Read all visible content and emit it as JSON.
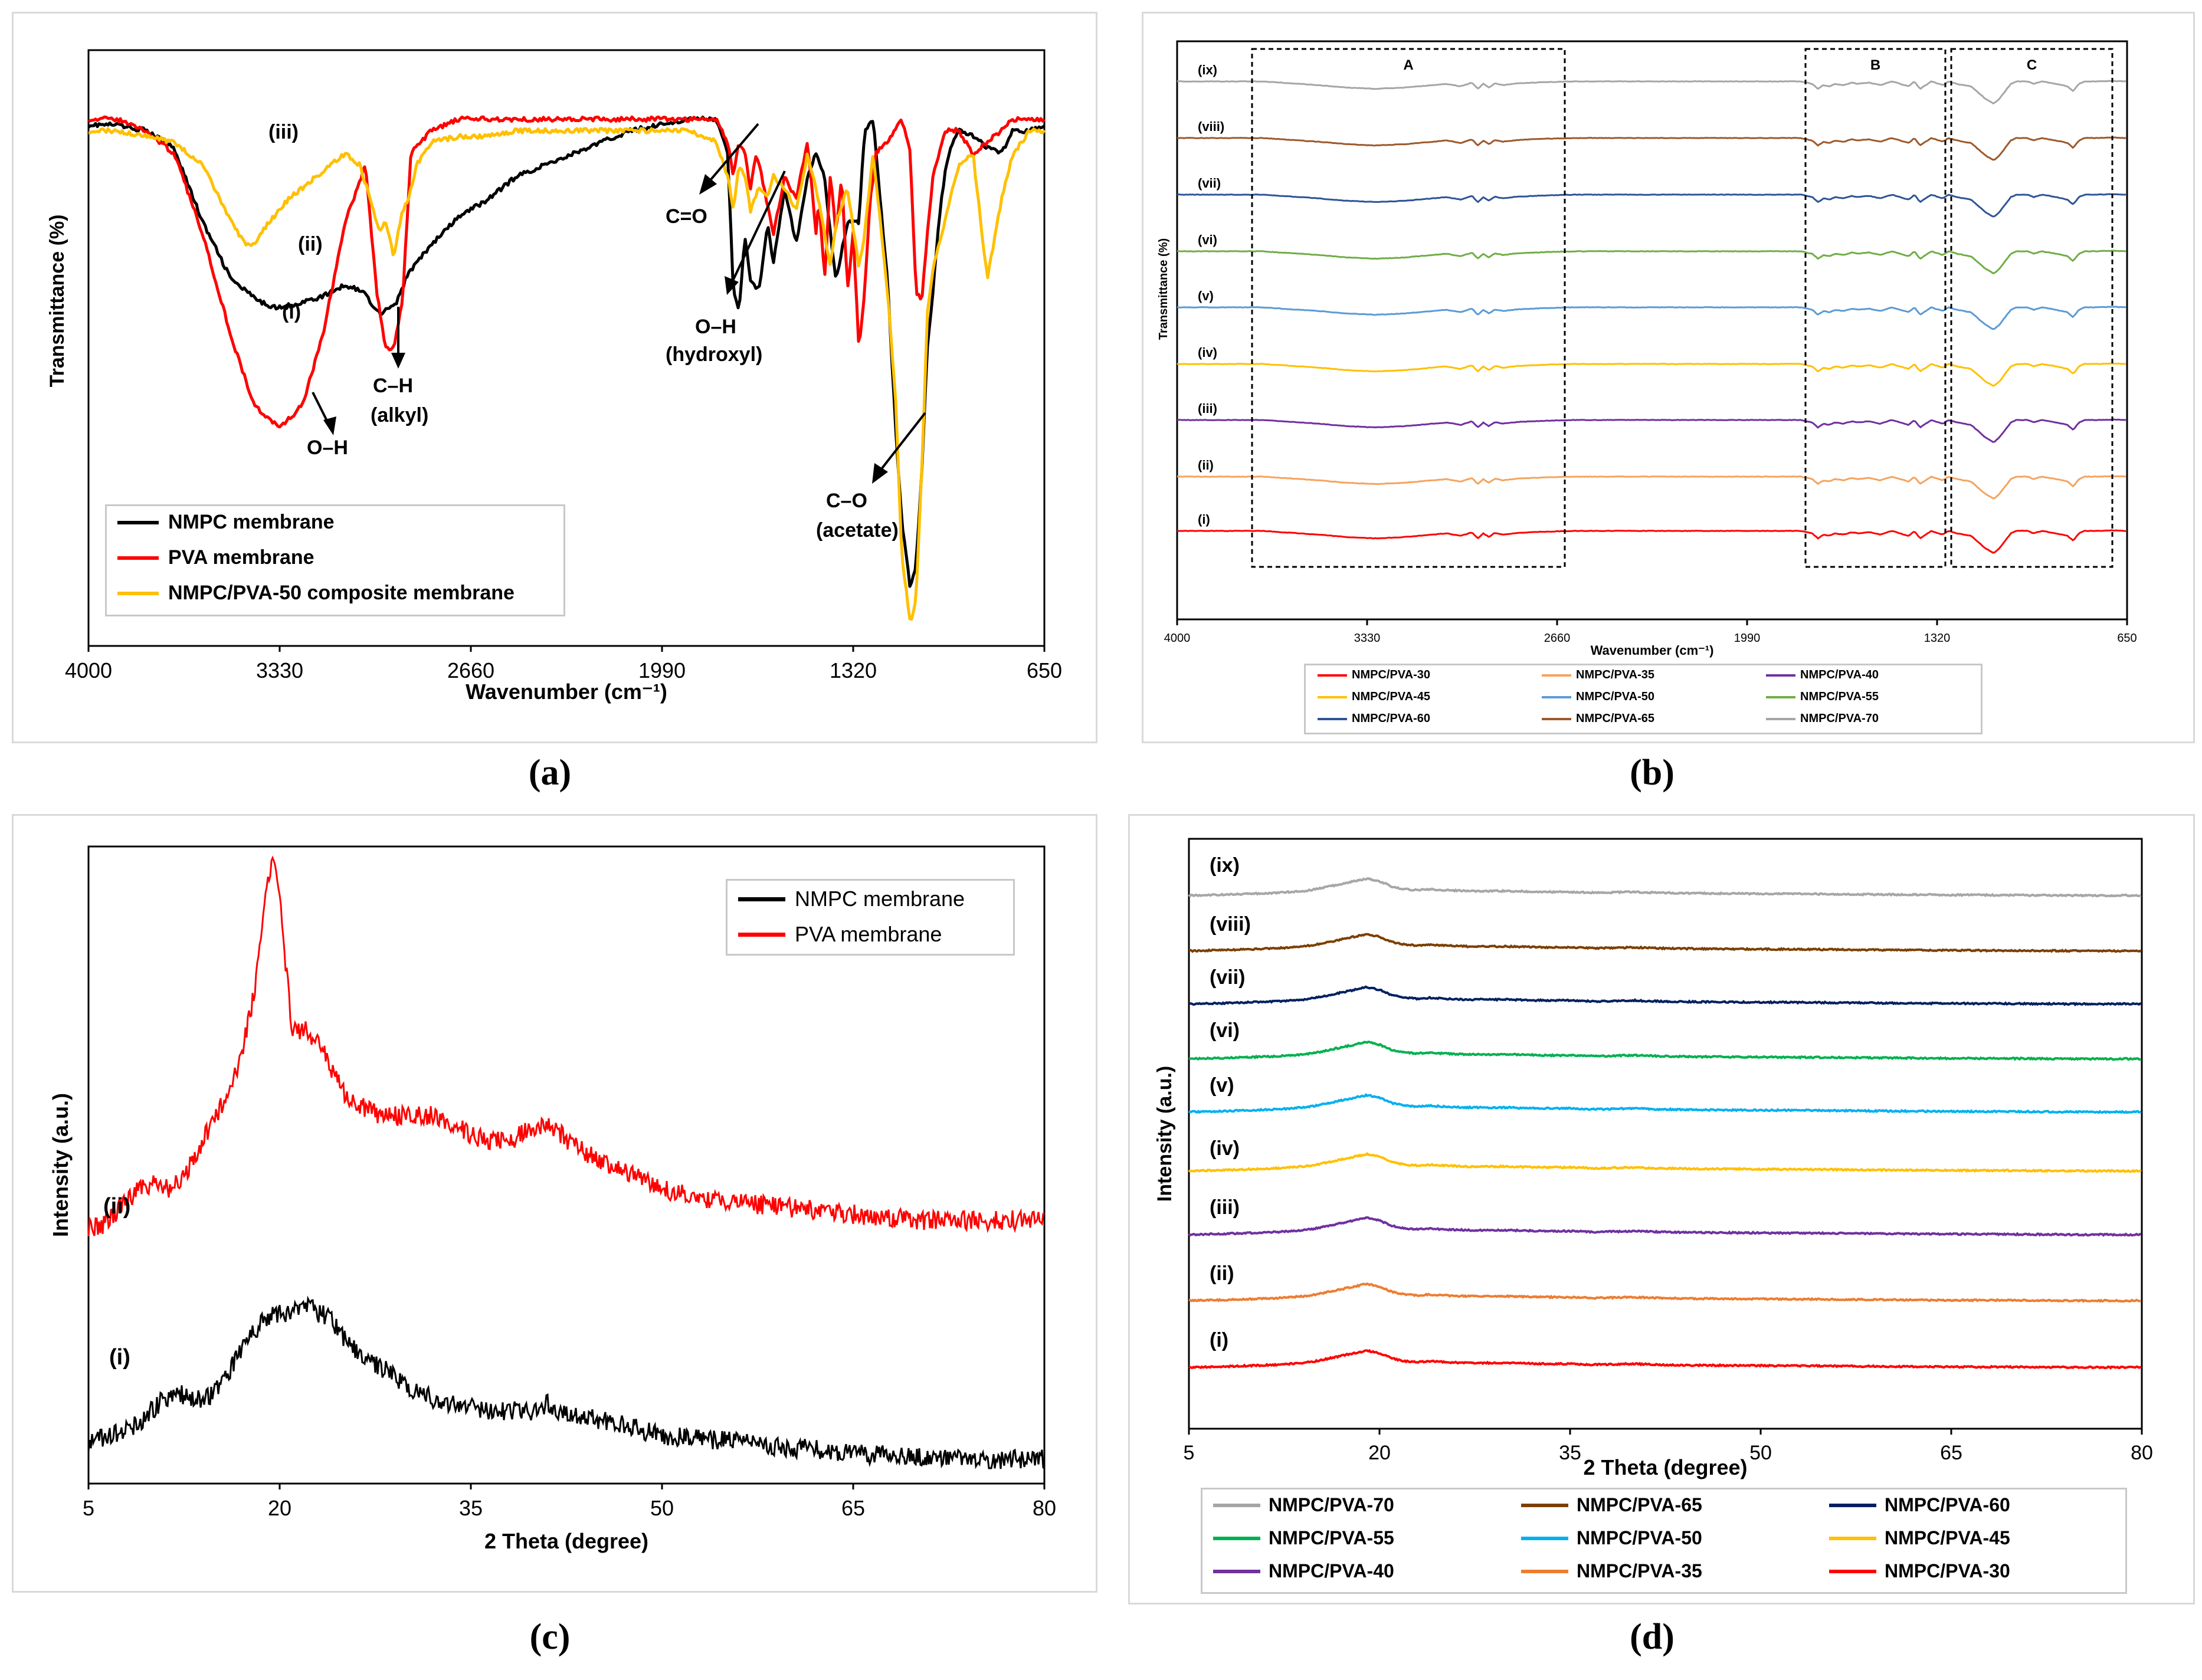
{
  "captions": {
    "a": "(a)",
    "b": "(b)",
    "c": "(c)",
    "d": "(d)"
  },
  "chart_data": [
    {
      "id": "a",
      "type": "line",
      "title": "",
      "xlabel": "Wavenumber (cm⁻¹)",
      "ylabel": "Transmittance (%)",
      "xlim": [
        4000,
        650
      ],
      "x_reversed": true,
      "xticks": [
        "4000",
        "3330",
        "2660",
        "1990",
        "1320",
        "650"
      ],
      "ylim": [
        0,
        100
      ],
      "legend_position": "bottom-left",
      "series": [
        {
          "name": "NMPC membrane",
          "label": "(i)",
          "color": "#000000",
          "x": [
            4000,
            3900,
            3800,
            3700,
            3600,
            3500,
            3400,
            3330,
            3250,
            3180,
            3100,
            3040,
            2980,
            2920,
            2880,
            2800,
            2700,
            2600,
            2500,
            2400,
            2300,
            2200,
            2100,
            2000,
            1900,
            1800,
            1760,
            1740,
            1720,
            1700,
            1680,
            1650,
            1620,
            1600,
            1560,
            1520,
            1480,
            1450,
            1420,
            1400,
            1380,
            1340,
            1300,
            1280,
            1250,
            1200,
            1170,
            1150,
            1120,
            1100,
            1080,
            1060,
            1040,
            1020,
            1000,
            980,
            950,
            900,
            850,
            800,
            760,
            700,
            650
          ],
          "y": [
            89,
            89,
            88,
            85,
            72,
            62,
            58,
            57,
            58,
            59,
            61,
            60,
            56,
            58,
            63,
            68,
            73,
            76,
            80,
            82,
            84,
            86,
            88,
            89,
            90,
            90,
            84,
            60,
            56,
            70,
            62,
            60,
            72,
            65,
            78,
            68,
            80,
            84,
            80,
            70,
            62,
            72,
            72,
            88,
            90,
            62,
            35,
            20,
            8,
            12,
            28,
            50,
            60,
            72,
            80,
            85,
            88,
            87,
            85,
            84,
            88,
            88,
            89
          ]
        },
        {
          "name": "PVA membrane",
          "label": "(ii)",
          "color": "#ff0000",
          "x": [
            4000,
            3900,
            3800,
            3700,
            3600,
            3500,
            3420,
            3330,
            3250,
            3180,
            3100,
            3030,
            2990,
            2960,
            2930,
            2900,
            2870,
            2800,
            2700,
            2600,
            2500,
            2400,
            2300,
            2200,
            2100,
            2000,
            1900,
            1800,
            1760,
            1740,
            1720,
            1700,
            1680,
            1660,
            1640,
            1600,
            1560,
            1520,
            1480,
            1450,
            1440,
            1420,
            1400,
            1380,
            1360,
            1340,
            1320,
            1300,
            1280,
            1260,
            1240,
            1200,
            1150,
            1120,
            1100,
            1080,
            1060,
            1040,
            1000,
            950,
            900,
            850,
            800,
            760,
            700,
            650
          ],
          "y": [
            90,
            90,
            88,
            84,
            70,
            52,
            40,
            36,
            40,
            52,
            72,
            82,
            60,
            50,
            50,
            58,
            84,
            88,
            90,
            90,
            90,
            90,
            90,
            90,
            90,
            90,
            90,
            90,
            86,
            80,
            86,
            84,
            78,
            84,
            80,
            70,
            80,
            76,
            86,
            70,
            76,
            62,
            80,
            70,
            80,
            60,
            70,
            50,
            60,
            76,
            84,
            86,
            90,
            84,
            60,
            58,
            70,
            80,
            88,
            88,
            84,
            86,
            88,
            90,
            90,
            90
          ]
        },
        {
          "name": "NMPC/PVA-50 composite membrane",
          "label": "(iii)",
          "color": "#ffc000",
          "x": [
            4000,
            3900,
            3800,
            3700,
            3600,
            3500,
            3450,
            3420,
            3400,
            3350,
            3300,
            3250,
            3200,
            3150,
            3100,
            3050,
            3000,
            2980,
            2960,
            2930,
            2900,
            2880,
            2850,
            2800,
            2700,
            2600,
            2500,
            2400,
            2300,
            2200,
            2100,
            2000,
            1900,
            1800,
            1760,
            1740,
            1720,
            1700,
            1680,
            1650,
            1620,
            1600,
            1560,
            1520,
            1480,
            1450,
            1420,
            1400,
            1380,
            1340,
            1300,
            1280,
            1250,
            1200,
            1170,
            1150,
            1120,
            1100,
            1080,
            1060,
            1040,
            1000,
            960,
            950,
            900,
            850,
            800,
            760,
            700,
            650
          ],
          "y": [
            88,
            88,
            87,
            86,
            82,
            72,
            68,
            68,
            70,
            73,
            76,
            78,
            80,
            82,
            84,
            82,
            74,
            70,
            72,
            66,
            74,
            76,
            82,
            86,
            87,
            87,
            88,
            88,
            88,
            88,
            88,
            88,
            88,
            86,
            80,
            74,
            82,
            80,
            74,
            78,
            76,
            80,
            78,
            74,
            84,
            78,
            70,
            64,
            72,
            78,
            64,
            70,
            84,
            60,
            40,
            14,
            2,
            6,
            28,
            56,
            64,
            72,
            80,
            82,
            84,
            62,
            76,
            84,
            88,
            88
          ]
        }
      ],
      "annotations": [
        "(i)",
        "(ii)",
        "(iii)",
        "O–H",
        "C–H",
        "(alkyl)",
        "C=O",
        "O–H",
        "(hydroxyl)",
        "C–O",
        "(acetate)"
      ]
    },
    {
      "id": "b",
      "type": "line",
      "title": "",
      "xlabel": "Wavenumber (cm⁻¹)",
      "ylabel": "Transmittance (%)",
      "xlim": [
        4000,
        650
      ],
      "x_reversed": true,
      "xticks": [
        "4000",
        "3330",
        "2660",
        "1990",
        "1320",
        "650"
      ],
      "stacked_offset": true,
      "regions": [
        "A",
        "B",
        "C"
      ],
      "legend_position": "bottom",
      "shape": {
        "x": [
          4000,
          3700,
          3500,
          3400,
          3300,
          3200,
          3100,
          3050,
          3000,
          2960,
          2940,
          2920,
          2900,
          2880,
          2850,
          2800,
          2700,
          2600,
          2500,
          2400,
          2300,
          2200,
          2100,
          2000,
          1900,
          1800,
          1760,
          1740,
          1720,
          1700,
          1680,
          1650,
          1620,
          1600,
          1560,
          1520,
          1480,
          1450,
          1420,
          1400,
          1380,
          1340,
          1300,
          1280,
          1250,
          1200,
          1170,
          1150,
          1120,
          1100,
          1080,
          1060,
          1040,
          1020,
          1000,
          980,
          950,
          900,
          860,
          840,
          820,
          800,
          760,
          700,
          650
        ],
        "y": [
          0,
          0,
          -1.5,
          -2.5,
          -3,
          -2.5,
          -1.5,
          -1,
          -2,
          -0.5,
          -3,
          -1,
          -2.5,
          -0.8,
          -1.5,
          -0.8,
          -0.3,
          0,
          0,
          0,
          0,
          0,
          0,
          0,
          0,
          0,
          -1,
          -3,
          -1.5,
          -2,
          -1,
          -1.5,
          -0.5,
          -1,
          -0.5,
          -1.5,
          0,
          -1,
          -2,
          0,
          -3,
          0,
          -1.5,
          0,
          -1,
          -2,
          -5,
          -7,
          -9,
          -7,
          -4,
          -1,
          0,
          0,
          0,
          -1,
          0,
          -1,
          -2,
          -4,
          -1,
          0,
          0,
          0.2,
          0
        ]
      },
      "series": [
        {
          "name": "NMPC/PVA-30",
          "label": "(i)",
          "color": "#ff0000"
        },
        {
          "name": "NMPC/PVA-35",
          "label": "(ii)",
          "color": "#f4a460"
        },
        {
          "name": "NMPC/PVA-40",
          "label": "(iii)",
          "color": "#7030a0"
        },
        {
          "name": "NMPC/PVA-45",
          "label": "(iv)",
          "color": "#ffc000"
        },
        {
          "name": "NMPC/PVA-50",
          "label": "(v)",
          "color": "#5b9bd5"
        },
        {
          "name": "NMPC/PVA-55",
          "label": "(vi)",
          "color": "#70ad47"
        },
        {
          "name": "NMPC/PVA-60",
          "label": "(vii)",
          "color": "#2e5597"
        },
        {
          "name": "NMPC/PVA-65",
          "label": "(viii)",
          "color": "#9c5a2c"
        },
        {
          "name": "NMPC/PVA-70",
          "label": "(ix)",
          "color": "#a6a6a6"
        }
      ]
    },
    {
      "id": "c",
      "type": "line",
      "title": "",
      "xlabel": "2 Theta (degree)",
      "ylabel": "Intensity (a.u.)",
      "xlim": [
        5,
        80
      ],
      "xticks": [
        "5",
        "20",
        "35",
        "50",
        "65",
        "80"
      ],
      "ylim": [
        0,
        100
      ],
      "legend_position": "top-right",
      "series": [
        {
          "name": "NMPC membrane",
          "label": "(i)",
          "color": "#000000",
          "x": [
            5,
            7,
            9,
            10,
            11,
            12,
            13,
            14,
            15,
            16,
            17,
            18,
            19,
            20,
            21,
            22,
            23,
            24,
            25,
            26,
            28,
            30,
            32,
            34,
            36,
            38,
            40,
            41,
            42,
            44,
            46,
            48,
            50,
            55,
            60,
            65,
            70,
            75,
            80
          ],
          "y": [
            5,
            6,
            8,
            10,
            12,
            13,
            12,
            12,
            13,
            16,
            20,
            23,
            25,
            26,
            26,
            27,
            26,
            25,
            22,
            20,
            17,
            14,
            12,
            11,
            10,
            10,
            10,
            11,
            10,
            9,
            8,
            7,
            6,
            5,
            4,
            3,
            2.5,
            2,
            2
          ]
        },
        {
          "name": "PVA membrane",
          "label": "(ii)",
          "color": "#ff0000",
          "x": [
            5,
            6,
            7,
            8,
            9,
            10,
            11,
            12,
            13,
            14,
            15,
            16,
            17,
            18,
            18.5,
            19,
            19.5,
            20,
            20.5,
            21,
            22,
            23,
            24,
            25,
            26,
            27,
            28,
            30,
            32,
            34,
            36,
            38,
            40,
            41,
            42,
            44,
            46,
            48,
            50,
            55,
            60,
            65,
            70,
            75,
            80
          ],
          "y": [
            40,
            40,
            42,
            44,
            46,
            47,
            46,
            47,
            50,
            54,
            58,
            62,
            68,
            78,
            88,
            96,
            99,
            94,
            82,
            72,
            72,
            70,
            66,
            62,
            60,
            59,
            58,
            58,
            58,
            56,
            54,
            54,
            56,
            57,
            55,
            52,
            50,
            48,
            46,
            44,
            43,
            42,
            41,
            41,
            41
          ]
        }
      ],
      "annotations": [
        "(i)",
        "(ii)"
      ]
    },
    {
      "id": "d",
      "type": "line",
      "title": "",
      "xlabel": "2 Theta (degree)",
      "ylabel": "Intensity (a.u.)",
      "xlim": [
        5,
        80
      ],
      "xticks": [
        "5",
        "20",
        "35",
        "50",
        "65",
        "80"
      ],
      "stacked_offset": true,
      "legend_position": "bottom",
      "shape": {
        "x": [
          5,
          8,
          10,
          12,
          14,
          15,
          16,
          17,
          18,
          19,
          20,
          21,
          22,
          23,
          24,
          25,
          27,
          30,
          33,
          35,
          37,
          40,
          42,
          45,
          50,
          55,
          60,
          65,
          70,
          75,
          80
        ],
        "y": [
          0,
          0.5,
          1,
          1.5,
          2.5,
          3.5,
          5,
          6.5,
          8,
          9.5,
          8,
          5,
          3.5,
          3,
          3.5,
          3,
          2.5,
          2.5,
          2,
          2,
          1.5,
          2,
          1.5,
          1.2,
          1,
          0.8,
          0.5,
          0.3,
          0.2,
          0,
          0
        ]
      },
      "series": [
        {
          "name": "NMPC/PVA-30",
          "label": "(i)",
          "color": "#ff0000"
        },
        {
          "name": "NMPC/PVA-35",
          "label": "(ii)",
          "color": "#ed7d31"
        },
        {
          "name": "NMPC/PVA-40",
          "label": "(iii)",
          "color": "#7030a0"
        },
        {
          "name": "NMPC/PVA-45",
          "label": "(iv)",
          "color": "#ffc000"
        },
        {
          "name": "NMPC/PVA-50",
          "label": "(v)",
          "color": "#00b0f0"
        },
        {
          "name": "NMPC/PVA-55",
          "label": "(vi)",
          "color": "#00b050"
        },
        {
          "name": "NMPC/PVA-60",
          "label": "(vii)",
          "color": "#002060"
        },
        {
          "name": "NMPC/PVA-65",
          "label": "(viii)",
          "color": "#7b3f00"
        },
        {
          "name": "NMPC/PVA-70",
          "label": "(ix)",
          "color": "#a6a6a6"
        }
      ],
      "legend_order": [
        "NMPC/PVA-70",
        "NMPC/PVA-65",
        "NMPC/PVA-60",
        "NMPC/PVA-55",
        "NMPC/PVA-50",
        "NMPC/PVA-45",
        "NMPC/PVA-40",
        "NMPC/PVA-35",
        "NMPC/PVA-30"
      ]
    }
  ]
}
